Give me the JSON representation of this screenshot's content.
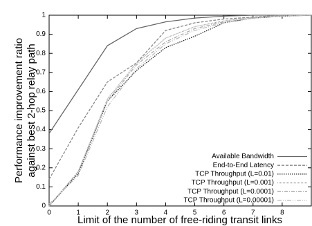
{
  "chart_data": {
    "type": "line",
    "ylabel": [
      "Performance improvement ratio",
      "against best 2-hop relay path"
    ],
    "xlabel": "Limit of the number of free-riding transit links",
    "x": [
      0,
      1,
      2,
      3,
      4,
      5,
      6,
      7,
      8,
      9
    ],
    "xlim": [
      0,
      9
    ],
    "xticks": [
      0,
      1,
      2,
      3,
      4,
      5,
      6,
      7,
      8
    ],
    "ylim": [
      0,
      1
    ],
    "yticks": [
      0,
      0.1,
      0.2,
      0.3,
      0.4,
      0.5,
      0.6,
      0.7,
      0.8,
      0.9,
      1
    ],
    "grid": false,
    "legend": "lower right",
    "series": [
      {
        "name": "Available Bandwidth",
        "color": "#666666",
        "dash": "none",
        "values": [
          0.38,
          0.61,
          0.84,
          0.93,
          0.965,
          0.985,
          0.995,
          1,
          1,
          1
        ]
      },
      {
        "name": "End-to-End Latency",
        "color": "#888888",
        "dash": "4,2",
        "values": [
          0.14,
          0.41,
          0.65,
          0.75,
          0.92,
          0.96,
          0.98,
          0.99,
          1,
          1
        ]
      },
      {
        "name": "TCP Throughput (L=0.01)",
        "color": "#222222",
        "dash": "1.5,1.5",
        "values": [
          0,
          0.17,
          0.55,
          0.71,
          0.83,
          0.89,
          0.96,
          0.985,
          0.995,
          1
        ]
      },
      {
        "name": "TCP Throughput (L=0.001)",
        "color": "#999999",
        "dash": "1,1",
        "values": [
          0,
          0.18,
          0.56,
          0.75,
          0.88,
          0.94,
          0.97,
          0.99,
          1,
          1
        ]
      },
      {
        "name": "TCP Throughput (L=0.0001)",
        "color": "#aaaaaa",
        "dash": "5,2,1,2",
        "values": [
          0,
          0.18,
          0.55,
          0.74,
          0.86,
          0.93,
          0.965,
          0.985,
          0.995,
          1
        ]
      },
      {
        "name": "TCP Throughput (L=0.00001)",
        "color": "#bbbbbb",
        "dash": "6,2,1,2,1,2",
        "values": [
          0.01,
          0.16,
          0.52,
          0.72,
          0.85,
          0.92,
          0.96,
          0.985,
          0.995,
          1
        ]
      }
    ]
  }
}
